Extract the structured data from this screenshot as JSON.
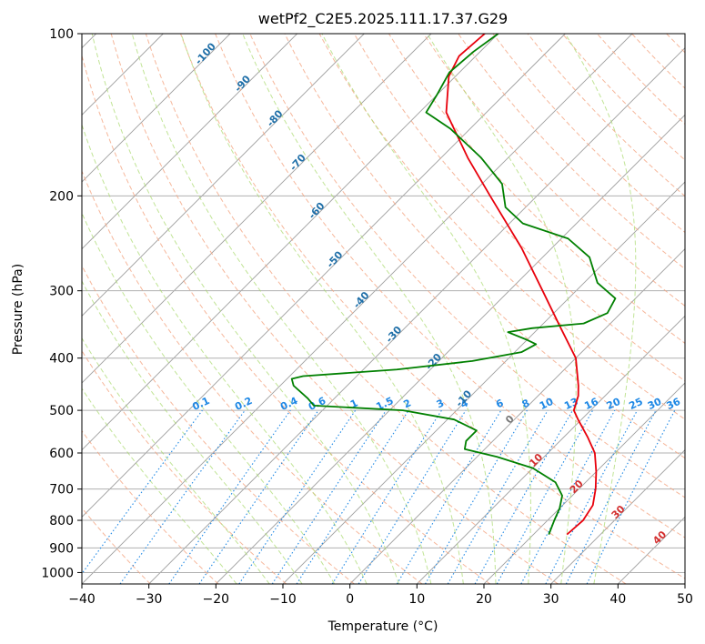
{
  "chart_data": {
    "type": "line",
    "subtype": "skew-t log-p sounding",
    "title": "wetPf2_C2E5.2025.111.17.37.G29",
    "xlabel": "Temperature (°C)",
    "ylabel": "Pressure (hPa)",
    "xlim": [
      -40,
      50
    ],
    "ylim": [
      1050,
      100
    ],
    "y_scale": "log",
    "grid": true,
    "x_ticks": [
      "−40",
      "−30",
      "−20",
      "−10",
      "0",
      "10",
      "20",
      "30",
      "40",
      "50"
    ],
    "y_ticks": [
      "100",
      "200",
      "300",
      "400",
      "500",
      "600",
      "700",
      "800",
      "900",
      "1000"
    ],
    "y_tick_values": [
      100,
      200,
      300,
      400,
      500,
      600,
      700,
      800,
      900,
      1000
    ],
    "colors": {
      "temperature": "#e8000b",
      "dewpoint": "#008000",
      "dry_adiabat": "#f4a582",
      "moist_adiabat": "#a6d96a",
      "mixing_ratio": "#1e88e5",
      "isotherm": "#9e9e9e"
    },
    "series": [
      {
        "color": "#e8000b",
        "points": [
          {
            "p": 850,
            "t": 25.0
          },
          {
            "p": 800,
            "t": 25.3
          },
          {
            "p": 750,
            "t": 24.5
          },
          {
            "p": 700,
            "t": 22.5
          },
          {
            "p": 650,
            "t": 20.0
          },
          {
            "p": 600,
            "t": 17.0
          },
          {
            "p": 560,
            "t": 13.5
          },
          {
            "p": 520,
            "t": 9.5
          },
          {
            "p": 500,
            "t": 7.5
          },
          {
            "p": 470,
            "t": 6.0
          },
          {
            "p": 450,
            "t": 4.5
          },
          {
            "p": 400,
            "t": 0.0
          },
          {
            "p": 350,
            "t": -7.0
          },
          {
            "p": 300,
            "t": -15.0
          },
          {
            "p": 250,
            "t": -24.5
          },
          {
            "p": 200,
            "t": -37.0
          },
          {
            "p": 170,
            "t": -46.0
          },
          {
            "p": 140,
            "t": -56.0
          },
          {
            "p": 120,
            "t": -61.0
          },
          {
            "p": 110,
            "t": -62.5
          },
          {
            "p": 100,
            "t": -62.0
          }
        ]
      },
      {
        "color": "#008000",
        "points": [
          {
            "p": 850,
            "t": 22.3
          },
          {
            "p": 800,
            "t": 21.0
          },
          {
            "p": 760,
            "t": 20.0
          },
          {
            "p": 720,
            "t": 18.5
          },
          {
            "p": 680,
            "t": 15.5
          },
          {
            "p": 640,
            "t": 10.0
          },
          {
            "p": 610,
            "t": 3.0
          },
          {
            "p": 590,
            "t": -3.0
          },
          {
            "p": 570,
            "t": -4.0
          },
          {
            "p": 545,
            "t": -4.0
          },
          {
            "p": 520,
            "t": -9.0
          },
          {
            "p": 500,
            "t": -18.0
          },
          {
            "p": 490,
            "t": -32.0
          },
          {
            "p": 475,
            "t": -34.0
          },
          {
            "p": 450,
            "t": -38.0
          },
          {
            "p": 437,
            "t": -39.3
          },
          {
            "p": 432,
            "t": -38.0
          },
          {
            "p": 420,
            "t": -25.0
          },
          {
            "p": 405,
            "t": -15.0
          },
          {
            "p": 390,
            "t": -9.0
          },
          {
            "p": 377,
            "t": -8.0
          },
          {
            "p": 370,
            "t": -10.0
          },
          {
            "p": 358,
            "t": -14.0
          },
          {
            "p": 352,
            "t": -11.0
          },
          {
            "p": 345,
            "t": -4.0
          },
          {
            "p": 330,
            "t": -2.0
          },
          {
            "p": 310,
            "t": -3.0
          },
          {
            "p": 290,
            "t": -8.0
          },
          {
            "p": 260,
            "t": -13.0
          },
          {
            "p": 240,
            "t": -19.0
          },
          {
            "p": 225,
            "t": -28.0
          },
          {
            "p": 210,
            "t": -33.0
          },
          {
            "p": 190,
            "t": -37.0
          },
          {
            "p": 170,
            "t": -44.0
          },
          {
            "p": 150,
            "t": -53.0
          },
          {
            "p": 140,
            "t": -59.0
          },
          {
            "p": 130,
            "t": -60.0
          },
          {
            "p": 118,
            "t": -61.5
          },
          {
            "p": 108,
            "t": -61.0
          },
          {
            "p": 100,
            "t": -60.0
          }
        ]
      }
    ],
    "dry_adiabats_K": [
      230,
      240,
      250,
      260,
      270,
      280,
      290,
      300,
      310,
      320,
      330,
      340,
      350,
      360,
      370,
      380,
      390,
      400,
      410,
      420,
      430,
      440,
      450,
      460
    ],
    "moist_adiabats_C": [
      -20,
      -15,
      -10,
      -5,
      0,
      5,
      10,
      15,
      20,
      25,
      30,
      35
    ],
    "mixing_ratio_lines": [
      0.1,
      0.2,
      0.4,
      0.6,
      1,
      1.5,
      2,
      3,
      4,
      6,
      8,
      10,
      13,
      16,
      20,
      25,
      30,
      36
    ],
    "mixing_ratio_labels": [
      "0.1",
      "0.2",
      "0.4",
      "0.6",
      "1",
      "1.5",
      "2",
      "3",
      "4",
      "6",
      "8",
      "10",
      "13",
      "16",
      "20",
      "25",
      "30",
      "36"
    ],
    "dry_adiabat_labels": [
      {
        "text": "0",
        "t": 0,
        "p": 525
      },
      {
        "text": "10",
        "t": 10,
        "p": 625
      },
      {
        "text": "20",
        "t": 20,
        "p": 700
      },
      {
        "text": "30",
        "t": 30,
        "p": 780
      },
      {
        "text": "40",
        "t": 40,
        "p": 870
      }
    ],
    "moist_adiabat_labels": [
      {
        "text": "-100",
        "t": -100,
        "p": 110
      },
      {
        "text": "-90",
        "t": -90,
        "p": 125
      },
      {
        "text": "-80",
        "t": -80,
        "p": 145
      },
      {
        "text": "-70",
        "t": -70,
        "p": 175
      },
      {
        "text": "-60",
        "t": -60,
        "p": 215
      },
      {
        "text": "-50",
        "t": -50,
        "p": 265
      },
      {
        "text": "-40",
        "t": -40,
        "p": 315
      },
      {
        "text": "-30",
        "t": -30,
        "p": 365
      },
      {
        "text": "-20",
        "t": -20,
        "p": 410
      },
      {
        "text": "-10",
        "t": -10,
        "p": 480
      }
    ]
  }
}
